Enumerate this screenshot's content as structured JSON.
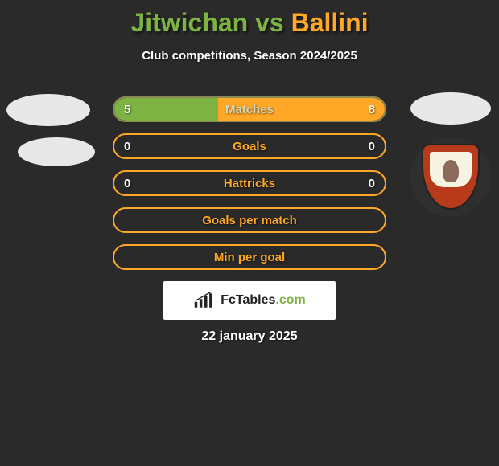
{
  "title": {
    "player1": "Jitwichan",
    "vs": "vs",
    "player2": "Ballini"
  },
  "subtitle": "Club competitions, Season 2024/2025",
  "colors": {
    "p1": "#7cb342",
    "p2": "#ffa726",
    "label": "#cfd8c0",
    "bg": "#2a2a2a",
    "border_p1": "#7cb342",
    "border_p2": "#ffa726"
  },
  "rows": [
    {
      "label": "Matches",
      "left_val": "5",
      "right_val": "8",
      "left_pct": 38.5,
      "right_pct": 61.5,
      "left_fill": "#7cb342",
      "right_fill": "#ffa726",
      "border": "#8a8a55",
      "label_color": "#d0d8c0"
    },
    {
      "label": "Goals",
      "left_val": "0",
      "right_val": "0",
      "left_pct": 0,
      "right_pct": 0,
      "left_fill": "#7cb342",
      "right_fill": "#ffa726",
      "border": "#ffa726",
      "label_color": "#ffa726"
    },
    {
      "label": "Hattricks",
      "left_val": "0",
      "right_val": "0",
      "left_pct": 0,
      "right_pct": 0,
      "left_fill": "#7cb342",
      "right_fill": "#ffa726",
      "border": "#ffa726",
      "label_color": "#ffa726"
    },
    {
      "label": "Goals per match",
      "left_val": "",
      "right_val": "",
      "left_pct": 0,
      "right_pct": 0,
      "left_fill": "#7cb342",
      "right_fill": "#ffa726",
      "border": "#ffa726",
      "label_color": "#ffa726"
    },
    {
      "label": "Min per goal",
      "left_val": "",
      "right_val": "",
      "left_pct": 0,
      "right_pct": 0,
      "left_fill": "#7cb342",
      "right_fill": "#ffa726",
      "border": "#ffa726",
      "label_color": "#ffa726"
    }
  ],
  "brand": {
    "text_main": "FcTables",
    "text_suffix": ".com"
  },
  "date": "22 january 2025"
}
